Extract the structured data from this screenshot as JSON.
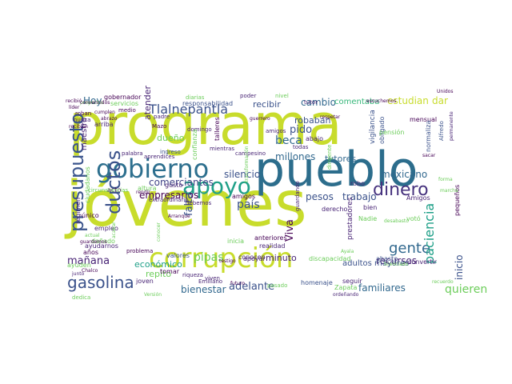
{
  "word_cloud": {
    "words": [
      {
        "text": "programa",
        "color": "#c8dc2c"
      },
      {
        "text": "jóvenes",
        "color": "#c8dc2c"
      },
      {
        "text": "pueblo",
        "color": "#2c6d8c"
      },
      {
        "text": "corrupción",
        "color": "#c8dc2c"
      },
      {
        "text": "gobierno",
        "color": "#2d6f8e"
      },
      {
        "text": "apoyo",
        "color": "#1fa088"
      },
      {
        "text": "presupuesto",
        "color": "#3a548c"
      },
      {
        "text": "ductos",
        "color": "#3b528b"
      },
      {
        "text": "Tlalnepantla",
        "color": "#3b528b"
      },
      {
        "text": "gasolina",
        "color": "#3b528b"
      },
      {
        "text": "dinero",
        "color": "#46327e"
      },
      {
        "text": "gente",
        "color": "#31688e"
      },
      {
        "text": "paciencia",
        "color": "#1fa088"
      },
      {
        "text": "mañana",
        "color": "#482475"
      },
      {
        "text": "pesos",
        "color": "#3b528b"
      },
      {
        "text": "trabajo",
        "color": "#3b528b"
      },
      {
        "text": "millones",
        "color": "#31688e"
      },
      {
        "text": "bienestar",
        "color": "#31688e"
      },
      {
        "text": "familiares",
        "color": "#31688e"
      },
      {
        "text": "mexicano",
        "color": "#31688e"
      },
      {
        "text": "adelante",
        "color": "#3b528b"
      },
      {
        "text": "recursos",
        "color": "#482475"
      },
      {
        "text": "quieren",
        "color": "#6ccd5a"
      },
      {
        "text": "inicio",
        "color": "#3b528b"
      },
      {
        "text": "adultos mayores",
        "color": "#3b528b"
      },
      {
        "text": "país",
        "color": "#3b528b"
      },
      {
        "text": "empresarios",
        "color": "#440154"
      },
      {
        "text": "comerciantes",
        "color": "#414487"
      },
      {
        "text": "silencio",
        "color": "#3b528b"
      },
      {
        "text": "robaban",
        "color": "#3b528b"
      },
      {
        "text": "pido",
        "color": "#3b528b"
      },
      {
        "text": "beca",
        "color": "#31688e"
      },
      {
        "text": "cambio",
        "color": "#31688e"
      },
      {
        "text": "comentaba",
        "color": "#35b779"
      },
      {
        "text": "estudian",
        "color": "#c8dc2c"
      },
      {
        "text": "dar",
        "color": "#c8dc2c"
      },
      {
        "text": "recibir",
        "color": "#3b528b"
      },
      {
        "text": "Hoy",
        "color": "#31688e"
      },
      {
        "text": "económico",
        "color": "#1fa088"
      },
      {
        "text": "pipas",
        "color": "#6ccd5a"
      },
      {
        "text": "falta",
        "color": "#3b528b"
      },
      {
        "text": "Viva",
        "color": "#440154"
      },
      {
        "text": "minuto",
        "color": "#482475"
      },
      {
        "text": "repito",
        "color": "#6ccd5a"
      },
      {
        "text": "atender",
        "color": "#482475"
      },
      {
        "text": "dueño",
        "color": "#6ccd5a"
      },
      {
        "text": "tutores",
        "color": "#31688e"
      },
      {
        "text": "maestro",
        "color": "#482475"
      },
      {
        "text": "servicios",
        "color": "#6ccd5a"
      },
      {
        "text": "gobernador",
        "color": "#440154"
      },
      {
        "text": "conocen",
        "color": "#482475"
      },
      {
        "text": "derecho",
        "color": "#482475"
      },
      {
        "text": "anteriores",
        "color": "#440154"
      },
      {
        "text": "realidad",
        "color": "#482475"
      },
      {
        "text": "discapacidad",
        "color": "#6ccd5a"
      },
      {
        "text": "homenaje",
        "color": "#3b528b"
      },
      {
        "text": "pasado",
        "color": "#6ccd5a"
      },
      {
        "text": "seguir",
        "color": "#482475"
      },
      {
        "text": "Zapata",
        "color": "#6ccd5a"
      },
      {
        "text": "apoyar",
        "color": "#482475"
      },
      {
        "text": "abasto",
        "color": "#3b528b"
      },
      {
        "text": "convertir",
        "color": "#482475"
      },
      {
        "text": "mensual",
        "color": "#440154"
      },
      {
        "text": "vigilancia",
        "color": "#3b528b"
      },
      {
        "text": "obligado",
        "color": "#3b528b"
      },
      {
        "text": "pensión",
        "color": "#6ccd5a"
      },
      {
        "text": "normaliza",
        "color": "#3b528b"
      },
      {
        "text": "robo",
        "color": "#482475"
      },
      {
        "text": "Amigos",
        "color": "#482475"
      },
      {
        "text": "bien",
        "color": "#482475"
      },
      {
        "text": "Nadie",
        "color": "#6ccd5a"
      },
      {
        "text": "votó",
        "color": "#6ccd5a"
      },
      {
        "text": "pequeños",
        "color": "#440154"
      },
      {
        "text": "prestadores",
        "color": "#482475"
      },
      {
        "text": "viven",
        "color": "#482475"
      },
      {
        "text": "valores",
        "color": "#3b528b"
      },
      {
        "text": "joven",
        "color": "#482475"
      },
      {
        "text": "tomar",
        "color": "#440154"
      },
      {
        "text": "Emiliano",
        "color": "#482475"
      },
      {
        "text": "amigos",
        "color": "#440154"
      },
      {
        "text": "debemos",
        "color": "#482475"
      },
      {
        "text": "gusto",
        "color": "#482475"
      },
      {
        "text": "altura",
        "color": "#6ccd5a"
      },
      {
        "text": "acto",
        "color": "#440154"
      },
      {
        "text": "extraordinario",
        "color": "#482475"
      },
      {
        "text": "ciudadanos",
        "color": "#6ccd5a"
      },
      {
        "text": "único",
        "color": "#440154"
      },
      {
        "text": "empleo",
        "color": "#482475"
      },
      {
        "text": "régimen",
        "color": "#482475"
      },
      {
        "text": "ayudarnos",
        "color": "#482475"
      },
      {
        "text": "dañado",
        "color": "#6ccd5a"
      },
      {
        "text": "años",
        "color": "#440154"
      },
      {
        "text": "ayuden",
        "color": "#6ccd5a"
      },
      {
        "text": "junto",
        "color": "#482475"
      },
      {
        "text": "dedica",
        "color": "#6ccd5a"
      },
      {
        "text": "circunstancias",
        "color": "#6ccd5a"
      },
      {
        "text": "palabra",
        "color": "#482475"
      },
      {
        "text": "ingreso",
        "color": "#3b528b"
      },
      {
        "text": "aprendices",
        "color": "#482475"
      },
      {
        "text": "domingo",
        "color": "#482475"
      },
      {
        "text": "Mazo",
        "color": "#440154"
      },
      {
        "text": "padre",
        "color": "#482475"
      },
      {
        "text": "arriba",
        "color": "#482475"
      },
      {
        "text": "roban",
        "color": "#440154"
      },
      {
        "text": "nunca",
        "color": "#482475"
      },
      {
        "text": "medio",
        "color": "#440154"
      },
      {
        "text": "nivel",
        "color": "#6ccd5a"
      },
      {
        "text": "tutor",
        "color": "#482475"
      },
      {
        "text": "talleres",
        "color": "#440154"
      },
      {
        "text": "mientras",
        "color": "#482475"
      },
      {
        "text": "amigos",
        "color": "#482475"
      },
      {
        "text": "todas",
        "color": "#482475"
      },
      {
        "text": "campesino",
        "color": "#482475"
      },
      {
        "text": "abajo",
        "color": "#482475"
      },
      {
        "text": "Alfredo",
        "color": "#3b528b"
      },
      {
        "text": "permanente",
        "color": "#482475"
      },
      {
        "text": "responsabilidad",
        "color": "#3b528b"
      },
      {
        "text": "diarias",
        "color": "#6ccd5a"
      },
      {
        "text": "poder",
        "color": "#482475"
      },
      {
        "text": "inicia",
        "color": "#6ccd5a"
      },
      {
        "text": "problema",
        "color": "#440154"
      },
      {
        "text": "guardando",
        "color": "#482475"
      },
      {
        "text": "riqueza",
        "color": "#482475"
      },
      {
        "text": "rendir",
        "color": "#440154"
      },
      {
        "text": "Unidos",
        "color": "#440154"
      },
      {
        "text": "recibían",
        "color": "#440154"
      },
      {
        "text": "cumplen",
        "color": "#440154"
      },
      {
        "text": "abrazo",
        "color": "#440154"
      },
      {
        "text": "líder",
        "color": "#440154"
      },
      {
        "text": "recibió",
        "color": "#440154"
      },
      {
        "text": "actual",
        "color": "#6ccd5a"
      },
      {
        "text": "Chalco",
        "color": "#440154"
      },
      {
        "text": "acabar",
        "color": "#6ccd5a"
      },
      {
        "text": "sacar",
        "color": "#440154"
      },
      {
        "text": "Ayala",
        "color": "#6ccd5a"
      },
      {
        "text": "Versión",
        "color": "#6ccd5a"
      },
      {
        "text": "recuerdo",
        "color": "#6ccd5a"
      },
      {
        "text": "licenciado",
        "color": "#6ccd5a"
      },
      {
        "text": "futuro",
        "color": "#440154"
      },
      {
        "text": "testigo",
        "color": "#440154"
      },
      {
        "text": "guardemos",
        "color": "#440154"
      },
      {
        "text": "Arranque",
        "color": "#440154"
      },
      {
        "text": "conocer",
        "color": "#6ccd5a"
      },
      {
        "text": "respetar",
        "color": "#440154"
      },
      {
        "text": "confianza",
        "color": "#6ccd5a"
      },
      {
        "text": "transformación",
        "color": "#6ccd5a"
      },
      {
        "text": "dirigente",
        "color": "#6ccd5a"
      },
      {
        "text": "ordeñando",
        "color": "#482475"
      },
      {
        "text": "escuchemos",
        "color": "#440154"
      },
      {
        "text": "desabasto",
        "color": "#6ccd5a"
      },
      {
        "text": "guerrero",
        "color": "#440154"
      },
      {
        "text": "forma",
        "color": "#6ccd5a"
      },
      {
        "text": "marcha",
        "color": "#6ccd5a"
      },
      {
        "text": "proyectos",
        "color": "#6ccd5a"
      },
      {
        "text": "convencidos",
        "color": "#440154"
      }
    ]
  }
}
